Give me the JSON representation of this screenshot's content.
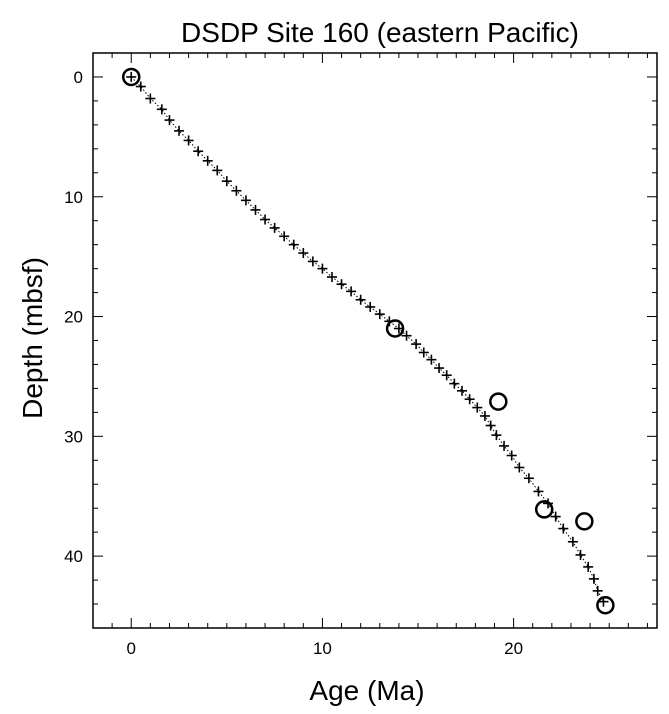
{
  "chart_data": {
    "type": "scatter",
    "title": "DSDP Site 160 (eastern Pacific)",
    "xlabel": "Age (Ma)",
    "ylabel": "Depth (mbsf)",
    "xlim": [
      -2,
      27.5
    ],
    "ylim": [
      46,
      -2
    ],
    "y_inverted": true,
    "grid": false,
    "x_ticks": [
      0,
      10,
      20
    ],
    "y_ticks": [
      0,
      10,
      20,
      30,
      40
    ],
    "x_minor_step": 1,
    "y_minor_step": 2,
    "series": [
      {
        "marker": "plus",
        "line": "dotted",
        "x": [
          0.0,
          0.5,
          1.0,
          1.6,
          2.0,
          2.5,
          3.0,
          3.5,
          4.0,
          4.5,
          5.0,
          5.5,
          6.0,
          6.5,
          7.0,
          7.5,
          8.0,
          8.5,
          9.0,
          9.5,
          10.0,
          10.5,
          11.0,
          11.5,
          12.0,
          12.5,
          13.0,
          13.5,
          14.0,
          14.4,
          14.9,
          15.3,
          15.7,
          16.1,
          16.5,
          16.9,
          17.3,
          17.7,
          18.1,
          18.5,
          18.8,
          19.1,
          19.5,
          19.9,
          20.3,
          20.8,
          21.3,
          21.8,
          22.2,
          22.6,
          23.1,
          23.5,
          23.9,
          24.2,
          24.4,
          24.7
        ],
        "y": [
          0.0,
          0.8,
          1.8,
          2.7,
          3.6,
          4.5,
          5.3,
          6.2,
          7.0,
          7.8,
          8.7,
          9.5,
          10.3,
          11.1,
          11.9,
          12.6,
          13.3,
          14.0,
          14.7,
          15.4,
          16.0,
          16.7,
          17.3,
          17.9,
          18.6,
          19.2,
          19.8,
          20.4,
          21.0,
          21.6,
          22.3,
          23.0,
          23.6,
          24.3,
          24.9,
          25.6,
          26.2,
          26.9,
          27.6,
          28.3,
          29.1,
          29.9,
          30.8,
          31.6,
          32.6,
          33.5,
          34.6,
          35.6,
          36.7,
          37.7,
          38.8,
          39.9,
          40.9,
          41.9,
          42.9,
          43.8
        ]
      },
      {
        "marker": "circle",
        "x": [
          0.0,
          13.8,
          19.2,
          21.6,
          23.7,
          24.8
        ],
        "y": [
          0.0,
          21.0,
          27.1,
          36.1,
          37.1,
          44.1
        ]
      }
    ]
  }
}
